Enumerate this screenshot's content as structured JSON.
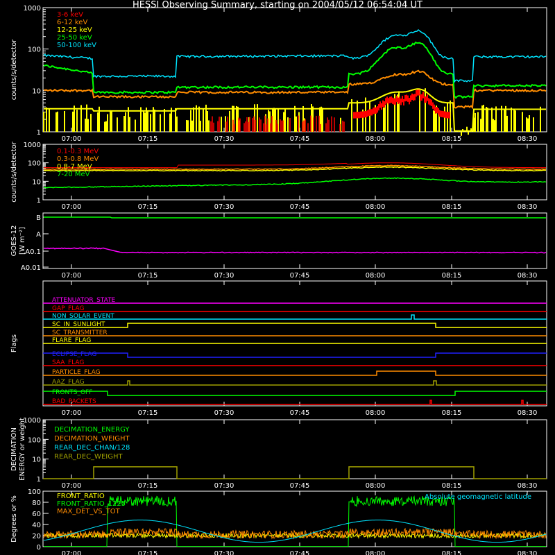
{
  "title": "HESSI Observing Summary, starting on 2004/05/12 06:54:04 UT",
  "time_ticks": [
    "07:00",
    "07:15",
    "07:30",
    "07:45",
    "08:00",
    "08:15",
    "08:30"
  ],
  "chart_data": [
    {
      "id": "xray",
      "type": "line",
      "ylabel": "counts/s/detector",
      "yscale": "log",
      "ylim": [
        1,
        1000
      ],
      "ytick_labels": [
        "1",
        "10",
        "100",
        "1000"
      ],
      "series": [
        {
          "name": "3-6 keV",
          "color": "#ff0000"
        },
        {
          "name": "6-12 keV",
          "color": "#ff8c00"
        },
        {
          "name": "12-25 keV",
          "color": "#ffff00"
        },
        {
          "name": "25-50 keV",
          "color": "#00ff00"
        },
        {
          "name": "50-100 keV",
          "color": "#00e5ff"
        }
      ]
    },
    {
      "id": "gamma",
      "type": "line",
      "ylabel": "counts/s/detector",
      "yscale": "log",
      "ylim": [
        1,
        1000
      ],
      "ytick_labels": [
        "1",
        "10",
        "100",
        "1000"
      ],
      "series": [
        {
          "name": "0.1-0.3 MeV",
          "color": "#ff0000"
        },
        {
          "name": "0.3-0.8 MeV",
          "color": "#ff8c00"
        },
        {
          "name": "0.8-7 MeV",
          "color": "#ffff00"
        },
        {
          "name": "7-20 MeV",
          "color": "#00ff00"
        }
      ]
    },
    {
      "id": "goes",
      "type": "line",
      "ylabel": "GOES-12",
      "ylabel2": "[W m⁻²]",
      "ytick_labels": [
        "B",
        "A",
        "A0.1",
        "A0.01"
      ],
      "series": [
        {
          "color": "#00ff00"
        },
        {
          "color": "#ff00ff"
        }
      ]
    },
    {
      "id": "flags",
      "type": "line",
      "ylabel": "Flags",
      "series": [
        {
          "name": "ATTENUATOR_STATE",
          "color": "#ff00ff"
        },
        {
          "name": "GAP_FLAG",
          "color": "#ff0000"
        },
        {
          "name": "NON_SOLAR_EVENT",
          "color": "#00e5ff"
        },
        {
          "name": "SC_IN_SUNLIGHT",
          "color": "#ffff00"
        },
        {
          "name": "SC_TRANSMITTER",
          "color": "#ff8c00"
        },
        {
          "name": "FLARE_FLAG",
          "color": "#ffff00"
        },
        {
          "name": "ECLIPSE_FLAG",
          "color": "#2020ff"
        },
        {
          "name": "SAA_FLAG",
          "color": "#ff0000"
        },
        {
          "name": "PARTICLE_FLAG",
          "color": "#ff8c00"
        },
        {
          "name": "AAZ_FLAG",
          "color": "#a0a000"
        },
        {
          "name": "FRONTS_OFF",
          "color": "#00ff00"
        },
        {
          "name": "BAD_PACKETS",
          "color": "#ff0000"
        }
      ]
    },
    {
      "id": "decimation",
      "type": "line",
      "ylabel": "DECIMATION",
      "ylabel2": "ENERGY or weight",
      "yscale": "log",
      "ylim": [
        1,
        1000
      ],
      "ytick_labels": [
        "1",
        "10",
        "100",
        "1000"
      ],
      "series": [
        {
          "name": "DECIMATION_ENERGY",
          "color": "#00ff00"
        },
        {
          "name": "DECIMATION_WEIGHT",
          "color": "#ff8c00"
        },
        {
          "name": "REAR_DEC_CHAN/128",
          "color": "#00e5ff"
        },
        {
          "name": "REAR_DEC_WEIGHT",
          "color": "#a0a000"
        }
      ]
    },
    {
      "id": "ratio",
      "type": "line",
      "ylabel": "Degrees or %",
      "ylim": [
        0,
        100
      ],
      "ytick_labels": [
        "0",
        "20",
        "40",
        "60",
        "80",
        "100"
      ],
      "annotation": "Absolute geomagnetic latitude",
      "series": [
        {
          "name": "FRONT_RATIO",
          "color": "#ffff00"
        },
        {
          "name": "FRONT_RATIO_1225",
          "color": "#00ff00"
        },
        {
          "name": "MAX_DET_VS_TOT",
          "color": "#ff8c00"
        },
        {
          "color": "#00e5ff"
        }
      ]
    }
  ]
}
